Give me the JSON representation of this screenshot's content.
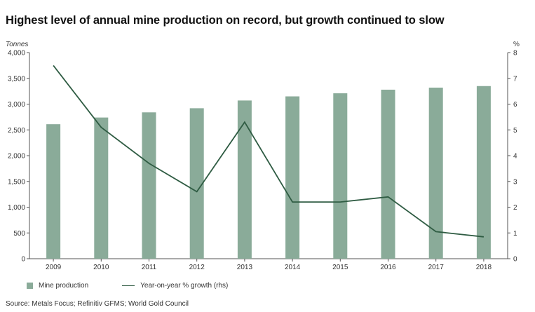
{
  "title": "Highest level of annual mine production on record, but growth continued to slow",
  "source": "Source: Metals Focus; Refinitiv GFMS; World Gold Council",
  "colors": {
    "bar": "#8aab99",
    "line": "#2f5c43",
    "axis": "#555555"
  },
  "chart_data": {
    "type": "bar+line",
    "categories": [
      "2009",
      "2010",
      "2011",
      "2012",
      "2013",
      "2014",
      "2015",
      "2016",
      "2017",
      "2018"
    ],
    "series": [
      {
        "name": "Mine production",
        "type": "bar",
        "axis": "left",
        "values": [
          2610,
          2740,
          2840,
          2920,
          3070,
          3150,
          3210,
          3280,
          3320,
          3350
        ]
      },
      {
        "name": "Year-on-year % growth (rhs)",
        "type": "line",
        "axis": "right",
        "values": [
          7.5,
          5.1,
          3.7,
          2.6,
          5.3,
          2.2,
          2.2,
          2.4,
          1.05,
          0.85
        ]
      }
    ],
    "y_left": {
      "unit": "Tonnes",
      "ylim": [
        0,
        4000
      ],
      "ticks": [
        "0",
        "500",
        "1,000",
        "1,500",
        "2,000",
        "2,500",
        "3,000",
        "3,500",
        "4,000"
      ]
    },
    "y_right": {
      "unit": "%",
      "ylim": [
        0,
        8
      ],
      "ticks": [
        "0",
        "1",
        "2",
        "3",
        "4",
        "5",
        "6",
        "7",
        "8"
      ]
    },
    "legend": [
      "Mine production",
      "Year-on-year % growth (rhs)"
    ],
    "legend_position": "bottom-left"
  }
}
